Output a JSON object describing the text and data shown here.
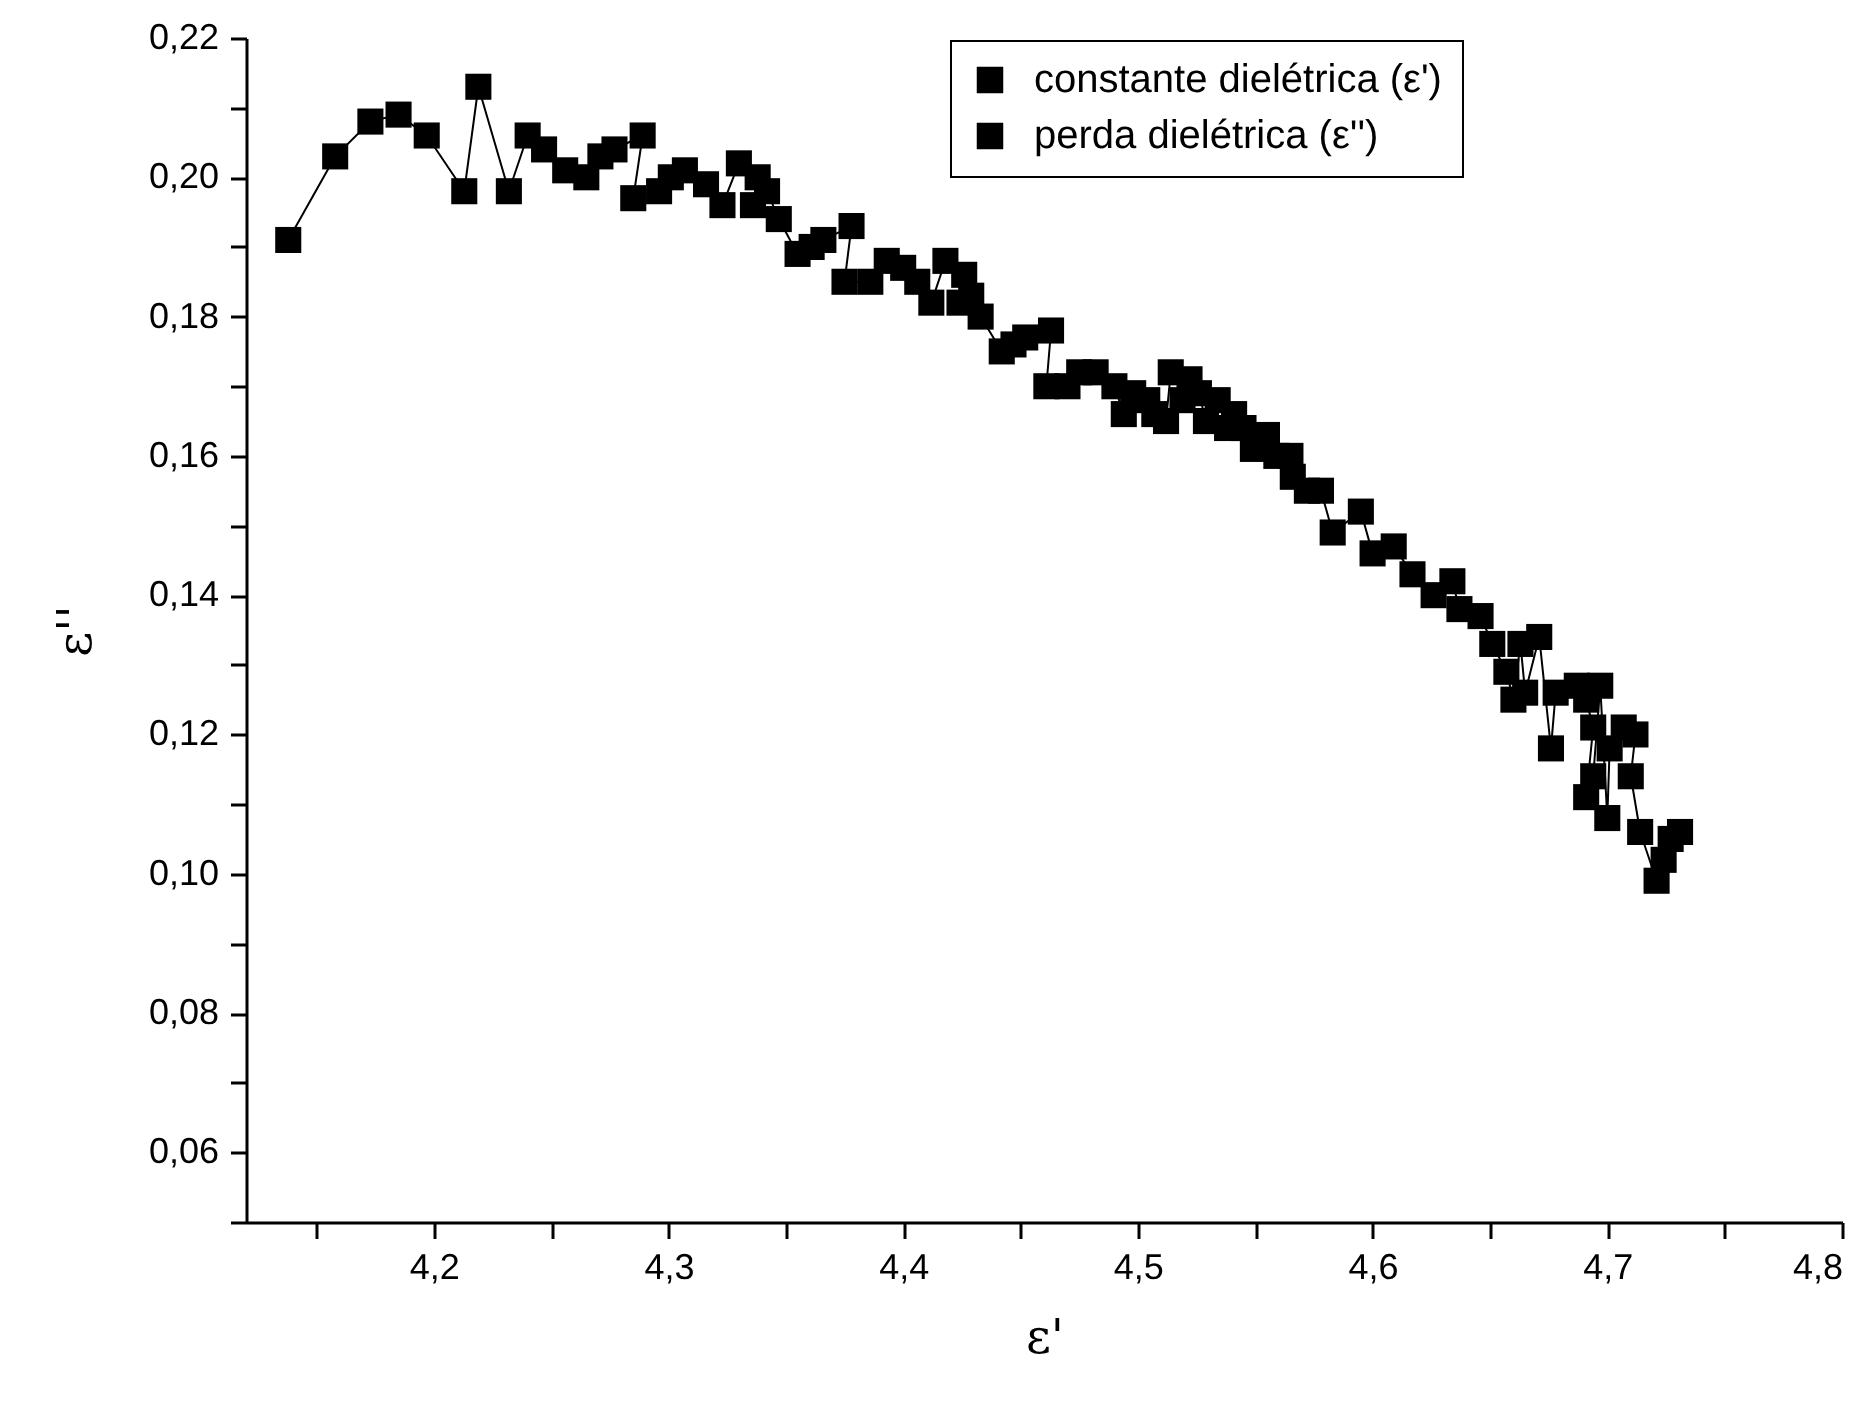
{
  "chart_data": {
    "type": "line",
    "xlabel": "ε'",
    "ylabel": "ε''",
    "marker": "square",
    "line_style": "solid",
    "grid": false,
    "legend": "top right",
    "xlim": [
      4.12,
      4.8
    ],
    "ylim": [
      0.05,
      0.22
    ],
    "xticks": [
      {
        "value": 4.15,
        "label": null
      },
      {
        "value": 4.2,
        "label": "4,2"
      },
      {
        "value": 4.25,
        "label": null
      },
      {
        "value": 4.3,
        "label": "4,3"
      },
      {
        "value": 4.35,
        "label": null
      },
      {
        "value": 4.4,
        "label": "4,4"
      },
      {
        "value": 4.45,
        "label": null
      },
      {
        "value": 4.5,
        "label": "4,5"
      },
      {
        "value": 4.55,
        "label": null
      },
      {
        "value": 4.6,
        "label": "4,6"
      },
      {
        "value": 4.65,
        "label": null
      },
      {
        "value": 4.7,
        "label": "4,7"
      },
      {
        "value": 4.75,
        "label": null
      },
      {
        "value": 4.8,
        "label": "4,8"
      }
    ],
    "yticks": [
      {
        "value": 0.05,
        "label": null
      },
      {
        "value": 0.06,
        "label": "0,06"
      },
      {
        "value": 0.07,
        "label": null
      },
      {
        "value": 0.08,
        "label": "0,08"
      },
      {
        "value": 0.09,
        "label": null
      },
      {
        "value": 0.1,
        "label": "0,10"
      },
      {
        "value": 0.11,
        "label": null
      },
      {
        "value": 0.12,
        "label": "0,12"
      },
      {
        "value": 0.13,
        "label": null
      },
      {
        "value": 0.14,
        "label": "0,14"
      },
      {
        "value": 0.15,
        "label": null
      },
      {
        "value": 0.16,
        "label": "0,16"
      },
      {
        "value": 0.17,
        "label": null
      },
      {
        "value": 0.18,
        "label": "0,18"
      },
      {
        "value": 0.19,
        "label": null
      },
      {
        "value": 0.2,
        "label": "0,20"
      },
      {
        "value": 0.21,
        "label": null
      },
      {
        "value": 0.22,
        "label": "0,22"
      }
    ],
    "x": [
      4.138,
      4.158,
      4.173,
      4.185,
      4.197,
      4.213,
      4.219,
      4.232,
      4.24,
      4.247,
      4.256,
      4.265,
      4.271,
      4.277,
      4.289,
      4.285,
      4.296,
      4.301,
      4.307,
      4.316,
      4.323,
      4.33,
      4.338,
      4.336,
      4.342,
      4.347,
      4.355,
      4.361,
      4.366,
      4.378,
      4.375,
      4.386,
      4.393,
      4.4,
      4.406,
      4.412,
      4.418,
      4.426,
      4.424,
      4.429,
      4.433,
      4.442,
      4.447,
      4.452,
      4.463,
      4.461,
      4.47,
      4.475,
      4.482,
      4.49,
      4.494,
      4.498,
      4.504,
      4.507,
      4.512,
      4.514,
      4.522,
      4.519,
      4.526,
      4.529,
      4.534,
      4.538,
      4.541,
      4.545,
      4.549,
      4.555,
      4.559,
      4.565,
      4.566,
      4.572,
      4.578,
      4.583,
      4.595,
      4.6,
      4.609,
      4.617,
      4.626,
      4.634,
      4.637,
      4.646,
      4.651,
      4.657,
      4.66,
      4.663,
      4.665,
      4.671,
      4.676,
      4.678,
      4.687,
      4.691,
      4.694,
      4.691,
      4.694,
      4.697,
      4.7,
      4.701,
      4.707,
      4.712,
      4.71,
      4.714,
      4.721,
      4.724,
      4.727,
      4.731
    ],
    "series": [
      {
        "name": "constante dielétrica (ε')",
        "color": "#000000",
        "values": [
          0.191,
          0.203,
          0.208,
          0.209,
          0.206,
          0.198,
          0.213,
          0.198,
          0.206,
          0.204,
          0.201,
          0.2,
          0.203,
          0.204,
          0.206,
          0.197,
          0.198,
          0.2,
          0.201,
          0.199,
          0.196,
          0.202,
          0.2,
          0.196,
          0.198,
          0.194,
          0.189,
          0.19,
          0.191,
          0.193,
          0.185,
          0.185,
          0.188,
          0.187,
          0.185,
          0.182,
          0.188,
          0.186,
          0.182,
          0.183,
          0.18,
          0.175,
          0.176,
          0.177,
          0.178,
          0.17,
          0.17,
          0.172,
          0.172,
          0.17,
          0.166,
          0.169,
          0.168,
          0.166,
          0.165,
          0.172,
          0.171,
          0.168,
          0.169,
          0.165,
          0.168,
          0.164,
          0.166,
          0.164,
          0.161,
          0.163,
          0.16,
          0.16,
          0.157,
          0.155,
          0.155,
          0.149,
          0.152,
          0.146,
          0.147,
          0.143,
          0.14,
          0.142,
          0.138,
          0.137,
          0.133,
          0.129,
          0.125,
          0.133,
          0.126,
          0.134,
          0.118,
          0.126,
          0.127,
          0.125,
          0.121,
          0.111,
          0.114,
          0.127,
          0.108,
          0.118,
          0.121,
          0.12,
          0.114,
          0.106,
          0.099,
          0.102,
          0.105,
          0.106
        ]
      },
      {
        "name": "perda dielétrica (ε'')",
        "color": "#000000",
        "values": [
          null,
          null,
          null,
          null,
          null,
          null,
          null,
          null,
          null,
          null,
          null,
          null,
          null,
          null,
          null,
          null,
          null,
          null,
          null,
          null,
          null,
          null,
          null,
          null,
          null,
          null,
          null,
          null,
          null,
          null,
          null,
          null,
          null,
          null,
          null,
          null,
          null,
          null,
          null,
          null,
          null,
          null,
          null,
          null,
          null,
          null,
          null,
          null,
          null,
          null,
          null,
          null,
          null,
          null,
          null,
          null,
          null,
          null,
          null,
          null,
          null,
          null,
          null,
          null,
          null,
          null,
          null,
          null,
          null,
          null,
          null,
          null,
          null,
          null,
          null,
          null,
          null,
          null,
          null,
          null,
          null,
          null,
          null,
          null,
          null,
          null,
          null,
          null,
          null,
          null,
          null,
          null,
          null,
          null,
          null,
          null,
          null,
          null,
          null,
          null,
          null,
          null,
          null,
          null
        ]
      }
    ]
  }
}
